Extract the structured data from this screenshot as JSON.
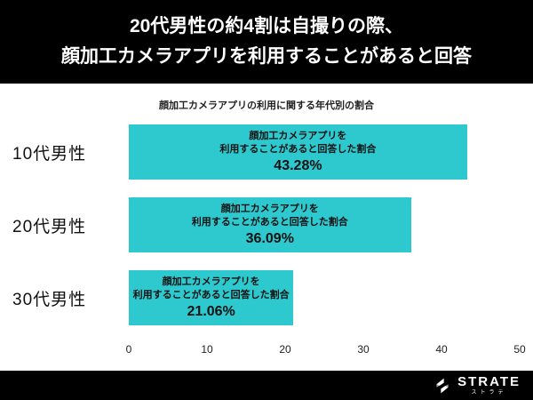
{
  "header": {
    "line1": "20代男性の約4割は自撮りの際、",
    "line2": "顔加工カメラアプリを利用することがあると回答"
  },
  "chart_data": {
    "type": "bar",
    "orientation": "horizontal",
    "title": "顔加工カメラアプリの利用に関する年代別の割合",
    "categories": [
      "10代男性",
      "20代男性",
      "30代男性"
    ],
    "values": [
      43.28,
      36.09,
      21.06
    ],
    "value_labels": [
      "43.28%",
      "36.09%",
      "21.06%"
    ],
    "bar_label_line1": "顔加工カメラアプリを",
    "bar_label_line2": "利用することがあると回答した割合",
    "xlim": [
      0,
      50
    ],
    "ticks": [
      "0",
      "10",
      "20",
      "30",
      "40",
      "50"
    ],
    "bar_color": "#2ec9cf",
    "grid": false,
    "legend": "none"
  },
  "footer": {
    "brand": "STRATE",
    "brand_sub": "ストラテ"
  }
}
